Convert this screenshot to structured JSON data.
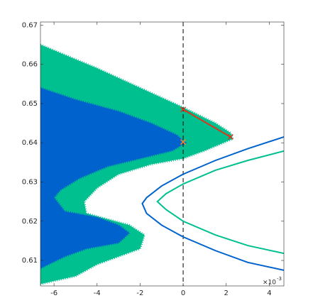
{
  "chart_data": {
    "type": "scatter",
    "xlim": [
      -6.63,
      4.68
    ],
    "ylim": [
      0.6035,
      0.6708
    ],
    "xticks": [
      -6,
      -4,
      -2,
      0,
      2,
      4
    ],
    "yticks": [
      0.61,
      0.62,
      0.63,
      0.64,
      0.65,
      0.66,
      0.67
    ],
    "x_exponent": {
      "base": "×10",
      "power": "-3"
    },
    "vline": 0,
    "regions": [
      {
        "color": "#00c08f",
        "x": [
          -6.63,
          -4,
          -2,
          0,
          1.5,
          2.2,
          2.3,
          1,
          0,
          -1.5,
          -3,
          -4,
          -4.6,
          -4.5,
          -3.5,
          -2.5,
          -1.8,
          -2,
          -3,
          -4,
          -5,
          -6.63
        ],
        "y": [
          0.665,
          0.659,
          0.654,
          0.649,
          0.645,
          0.6425,
          0.641,
          0.638,
          0.636,
          0.6345,
          0.632,
          0.6285,
          0.625,
          0.622,
          0.6205,
          0.619,
          0.6165,
          0.613,
          0.611,
          0.609,
          0.606,
          0.604
        ]
      },
      {
        "color": "#0062cc",
        "x": [
          -6.63,
          -5,
          -3,
          -1.5,
          -0.3,
          0.1,
          -0.5,
          -2,
          -3.5,
          -4.8,
          -5.7,
          -6,
          -5.5,
          -4,
          -3,
          -2.5,
          -3,
          -4.5,
          -5.5,
          -6.63
        ],
        "y": [
          0.654,
          0.651,
          0.648,
          0.645,
          0.642,
          0.64,
          0.638,
          0.636,
          0.634,
          0.631,
          0.628,
          0.626,
          0.6225,
          0.621,
          0.619,
          0.617,
          0.6145,
          0.613,
          0.611,
          0.608
        ]
      }
    ],
    "curves": [
      {
        "color": "#0062cc",
        "x": [
          4.68,
          3,
          1.5,
          0,
          -1,
          -1.7,
          -1.9,
          -1.7,
          -1,
          0,
          1.5,
          3,
          4.68
        ],
        "y": [
          0.6415,
          0.6385,
          0.6355,
          0.632,
          0.629,
          0.626,
          0.6245,
          0.622,
          0.619,
          0.616,
          0.6125,
          0.6095,
          0.6075
        ]
      },
      {
        "color": "#00c08f",
        "x": [
          4.68,
          3,
          1.5,
          0,
          -0.8,
          -1.2,
          -0.8,
          0,
          1.5,
          3,
          4.68
        ],
        "y": [
          0.6379,
          0.6355,
          0.633,
          0.6295,
          0.627,
          0.625,
          0.623,
          0.62,
          0.6165,
          0.6138,
          0.6118
        ]
      },
      {
        "color": "#d43a1e",
        "marker": "x",
        "x": [
          0,
          2.2
        ],
        "y": [
          0.6485,
          0.6415
        ]
      }
    ],
    "points": [
      {
        "color": "#f08a24",
        "x": [
          0
        ],
        "y": [
          0.6402
        ]
      }
    ]
  }
}
